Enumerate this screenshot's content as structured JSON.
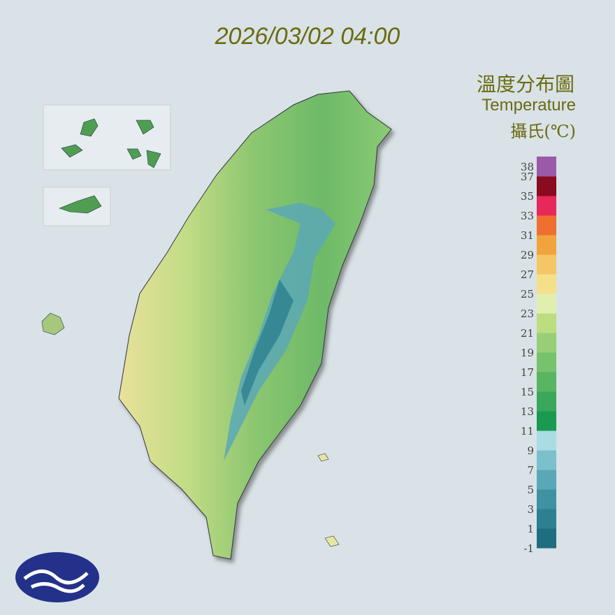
{
  "timestamp": "2026/03/02 04:00",
  "legend": {
    "title": "溫度分布圖",
    "subtitle": "Temperature",
    "unit": "攝氏(℃)",
    "lim": [
      -1,
      39
    ],
    "ticks": [
      38,
      37,
      35,
      33,
      31,
      29,
      27,
      25,
      23,
      21,
      19,
      17,
      15,
      13,
      11,
      9,
      7,
      5,
      3,
      1,
      -1
    ],
    "colors": [
      "#1f6e80",
      "#2d8090",
      "#3f92a2",
      "#5aa8b6",
      "#7cc0cc",
      "#a9dde3",
      "#1a9a50",
      "#3aa85a",
      "#58b562",
      "#77c26c",
      "#98cf76",
      "#bcdd80",
      "#e2eeb0",
      "#f5e08a",
      "#f4c664",
      "#f1a33d",
      "#ee6f2f",
      "#e8285a",
      "#8a0a1e",
      "#9b5aa8"
    ]
  }
}
